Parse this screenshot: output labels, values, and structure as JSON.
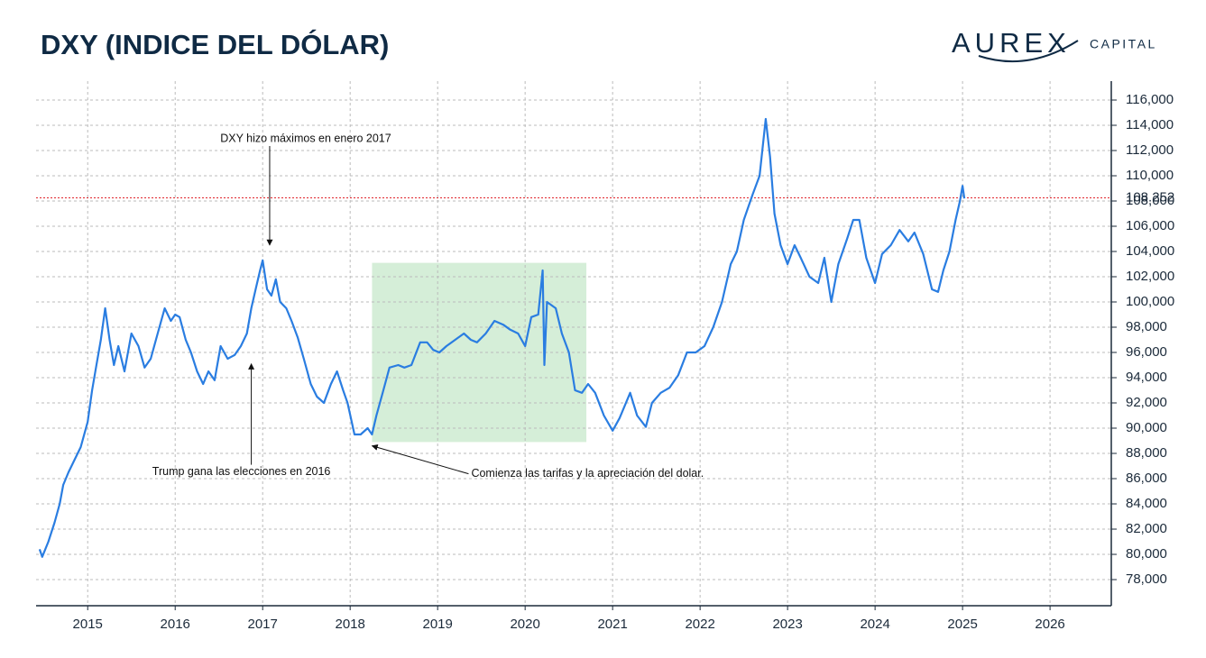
{
  "chart_data": {
    "type": "line",
    "title": "DXY (INDICE DEL DÓLAR)",
    "logo": {
      "text": "AUREX",
      "subtext": "CAPITAL"
    },
    "x": [
      2014.45,
      2014.48,
      2014.55,
      2014.62,
      2014.68,
      2014.72,
      2014.78,
      2014.85,
      2014.92,
      2015.0,
      2015.05,
      2015.1,
      2015.15,
      2015.2,
      2015.25,
      2015.3,
      2015.35,
      2015.42,
      2015.5,
      2015.58,
      2015.65,
      2015.72,
      2015.8,
      2015.88,
      2015.95,
      2016.0,
      2016.05,
      2016.12,
      2016.18,
      2016.25,
      2016.32,
      2016.38,
      2016.45,
      2016.52,
      2016.6,
      2016.68,
      2016.75,
      2016.82,
      2016.87,
      2016.92,
      2016.97,
      2017.0,
      2017.05,
      2017.1,
      2017.15,
      2017.2,
      2017.27,
      2017.33,
      2017.4,
      2017.47,
      2017.55,
      2017.62,
      2017.7,
      2017.78,
      2017.85,
      2017.92,
      2017.97,
      2018.05,
      2018.12,
      2018.2,
      2018.25,
      2018.3,
      2018.38,
      2018.45,
      2018.55,
      2018.62,
      2018.7,
      2018.8,
      2018.88,
      2018.95,
      2019.02,
      2019.1,
      2019.2,
      2019.3,
      2019.38,
      2019.45,
      2019.55,
      2019.65,
      2019.75,
      2019.83,
      2019.92,
      2020.0,
      2020.07,
      2020.15,
      2020.2,
      2020.22,
      2020.25,
      2020.35,
      2020.42,
      2020.5,
      2020.57,
      2020.65,
      2020.72,
      2020.8,
      2020.9,
      2021.0,
      2021.08,
      2021.2,
      2021.28,
      2021.38,
      2021.45,
      2021.55,
      2021.65,
      2021.75,
      2021.85,
      2021.95,
      2022.05,
      2022.15,
      2022.25,
      2022.35,
      2022.42,
      2022.5,
      2022.6,
      2022.68,
      2022.75,
      2022.8,
      2022.85,
      2022.92,
      2023.0,
      2023.08,
      2023.15,
      2023.25,
      2023.35,
      2023.42,
      2023.5,
      2023.58,
      2023.68,
      2023.75,
      2023.82,
      2023.9,
      2024.0,
      2024.08,
      2024.18,
      2024.28,
      2024.38,
      2024.45,
      2024.55,
      2024.65,
      2024.72,
      2024.78,
      2024.85,
      2024.92,
      2024.97,
      2025.0,
      2025.02
    ],
    "series": [
      {
        "name": "DXY",
        "color": "#2a7de1",
        "values": [
          80.4,
          79.8,
          81,
          82.5,
          84,
          85.5,
          86.5,
          87.5,
          88.5,
          90.5,
          93,
          95,
          97,
          99.5,
          97,
          95,
          96.5,
          94.5,
          97.5,
          96.5,
          94.8,
          95.5,
          97.5,
          99.5,
          98.5,
          99,
          98.8,
          97,
          96,
          94.5,
          93.5,
          94.5,
          93.8,
          96.5,
          95.5,
          95.8,
          96.5,
          97.5,
          99.5,
          101,
          102.5,
          103.3,
          101,
          100.5,
          101.8,
          100,
          99.5,
          98.5,
          97.2,
          95.5,
          93.5,
          92.5,
          92,
          93.5,
          94.5,
          93,
          92,
          89.5,
          89.5,
          90,
          89.5,
          91,
          93,
          94.8,
          95,
          94.8,
          95,
          96.8,
          96.8,
          96.2,
          96,
          96.5,
          97,
          97.5,
          97,
          96.8,
          97.5,
          98.5,
          98.2,
          97.8,
          97.5,
          96.5,
          98.8,
          99,
          102.5,
          95,
          100,
          99.5,
          97.5,
          96,
          93,
          92.8,
          93.5,
          92.8,
          91,
          89.8,
          90.8,
          92.8,
          91,
          90.1,
          92,
          92.8,
          93.2,
          94.2,
          96,
          96,
          96.5,
          98,
          100,
          103,
          104,
          106.5,
          108.5,
          110,
          114.5,
          111.5,
          107,
          104.5,
          103,
          104.5,
          103.5,
          102,
          101.5,
          103.5,
          100,
          103,
          105,
          106.5,
          106.5,
          103.5,
          101.5,
          103.8,
          104.5,
          105.7,
          104.8,
          105.5,
          103.8,
          101,
          100.8,
          102.5,
          104,
          106.5,
          108,
          109.2,
          108.2
        ]
      }
    ],
    "xlim": [
      2014.41,
      2026.7
    ],
    "xticks": [
      2015,
      2016,
      2017,
      2018,
      2019,
      2020,
      2021,
      2022,
      2023,
      2024,
      2025,
      2026
    ],
    "ylim": [
      75.93,
      117.5
    ],
    "yticks": [
      {
        "value": 78,
        "label": "78,000"
      },
      {
        "value": 80,
        "label": "80,000"
      },
      {
        "value": 82,
        "label": "82,000"
      },
      {
        "value": 84,
        "label": "84,000"
      },
      {
        "value": 86,
        "label": "86,000"
      },
      {
        "value": 88,
        "label": "88,000"
      },
      {
        "value": 90,
        "label": "90,000"
      },
      {
        "value": 92,
        "label": "92,000"
      },
      {
        "value": 94,
        "label": "94,000"
      },
      {
        "value": 96,
        "label": "96,000"
      },
      {
        "value": 98,
        "label": "98,000"
      },
      {
        "value": 100,
        "label": "100,000"
      },
      {
        "value": 102,
        "label": "102,000"
      },
      {
        "value": 104,
        "label": "104,000"
      },
      {
        "value": 106,
        "label": "106,000"
      },
      {
        "value": 108,
        "label": "108,000"
      },
      {
        "value": 110,
        "label": "110,000"
      },
      {
        "value": 112,
        "label": "112,000"
      },
      {
        "value": 114,
        "label": "114,000"
      },
      {
        "value": 116,
        "label": "116,000"
      }
    ],
    "grid": true,
    "reference_line": {
      "value": 108.252,
      "color": "#e0242b"
    },
    "highlight": {
      "x": [
        2018.25,
        2020.7
      ],
      "y": [
        88.9,
        103.1
      ],
      "color": "#d5eed8"
    },
    "annotations": [
      {
        "text": "DXY hizo máximos en enero 2017",
        "x": 2017.08,
        "y": 104.5
      },
      {
        "text": "Trump gana las elecciones en 2016",
        "x": 2016.87,
        "y": 95.1
      },
      {
        "text": "Comienza las tarifas y la apreciación del dolar.",
        "x": 2018.25,
        "y": 88.6
      }
    ]
  }
}
